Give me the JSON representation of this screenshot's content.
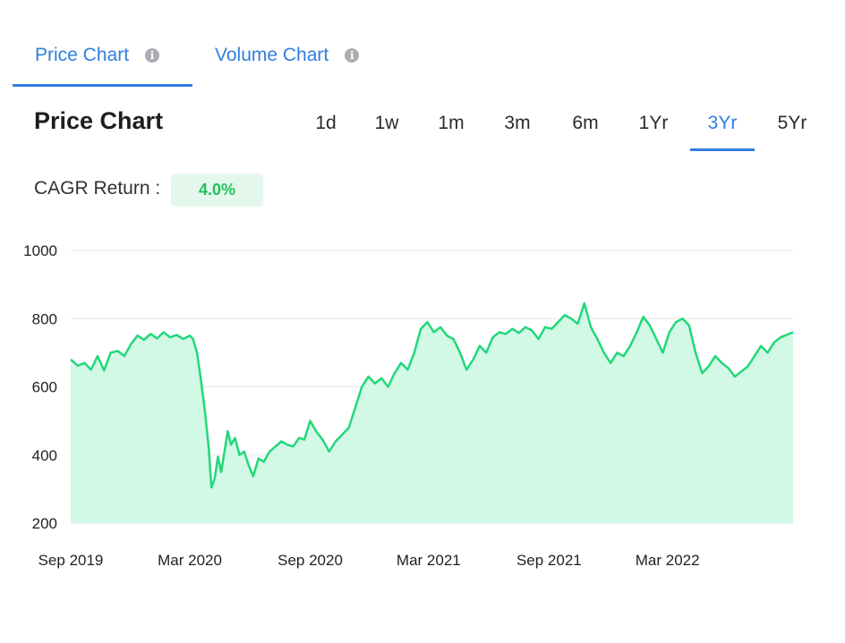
{
  "tabs": [
    {
      "label": "Price Chart",
      "active": true
    },
    {
      "label": "Volume Chart",
      "active": false
    }
  ],
  "info_icon": "info-circle-icon",
  "chart_title": "Price Chart",
  "ranges": [
    "1d",
    "1w",
    "1m",
    "3m",
    "6m",
    "1Yr",
    "3Yr",
    "5Yr"
  ],
  "active_range": "3Yr",
  "cagr": {
    "label": "CAGR Return :",
    "value": "4.0%"
  },
  "colors": {
    "accent": "#2f7ee0",
    "line": "#22d87a",
    "fill": "#d2f8e6",
    "positive": "#20c25a"
  },
  "chart_data": {
    "type": "area",
    "title": "",
    "xlabel": "",
    "ylabel": "",
    "ylim": [
      200,
      1000
    ],
    "yticks": [
      200,
      400,
      600,
      800,
      1000
    ],
    "xlim": [
      "2019-09-01",
      "2022-09-09"
    ],
    "xticks": [
      {
        "date": "2019-09-01",
        "label": "Sep 2019"
      },
      {
        "date": "2020-03-01",
        "label": "Mar 2020"
      },
      {
        "date": "2020-09-01",
        "label": "Sep 2020"
      },
      {
        "date": "2021-03-01",
        "label": "Mar 2021"
      },
      {
        "date": "2021-09-01",
        "label": "Sep 2021"
      },
      {
        "date": "2022-03-01",
        "label": "Mar 2022"
      }
    ],
    "grid": true,
    "series": [
      {
        "points": [
          [
            "2019-09-01",
            680
          ],
          [
            "2019-09-12",
            662
          ],
          [
            "2019-09-22",
            670
          ],
          [
            "2019-10-02",
            650
          ],
          [
            "2019-10-12",
            690
          ],
          [
            "2019-10-22",
            648
          ],
          [
            "2019-11-01",
            700
          ],
          [
            "2019-11-12",
            705
          ],
          [
            "2019-11-22",
            690
          ],
          [
            "2019-12-02",
            725
          ],
          [
            "2019-12-12",
            750
          ],
          [
            "2019-12-22",
            738
          ],
          [
            "2020-01-01",
            755
          ],
          [
            "2020-01-11",
            742
          ],
          [
            "2020-01-21",
            760
          ],
          [
            "2020-01-31",
            745
          ],
          [
            "2020-02-10",
            752
          ],
          [
            "2020-02-20",
            740
          ],
          [
            "2020-03-01",
            750
          ],
          [
            "2020-03-06",
            740
          ],
          [
            "2020-03-12",
            700
          ],
          [
            "2020-03-18",
            620
          ],
          [
            "2020-03-24",
            530
          ],
          [
            "2020-03-30",
            420
          ],
          [
            "2020-04-03",
            305
          ],
          [
            "2020-04-08",
            330
          ],
          [
            "2020-04-13",
            395
          ],
          [
            "2020-04-18",
            350
          ],
          [
            "2020-04-23",
            410
          ],
          [
            "2020-04-28",
            470
          ],
          [
            "2020-05-03",
            430
          ],
          [
            "2020-05-09",
            450
          ],
          [
            "2020-05-16",
            400
          ],
          [
            "2020-05-23",
            410
          ],
          [
            "2020-05-30",
            370
          ],
          [
            "2020-06-06",
            338
          ],
          [
            "2020-06-14",
            390
          ],
          [
            "2020-06-22",
            380
          ],
          [
            "2020-07-01",
            410
          ],
          [
            "2020-07-10",
            425
          ],
          [
            "2020-07-19",
            440
          ],
          [
            "2020-07-28",
            430
          ],
          [
            "2020-08-06",
            425
          ],
          [
            "2020-08-15",
            450
          ],
          [
            "2020-08-23",
            445
          ],
          [
            "2020-09-01",
            500
          ],
          [
            "2020-09-10",
            470
          ],
          [
            "2020-09-20",
            445
          ],
          [
            "2020-09-30",
            410
          ],
          [
            "2020-10-10",
            440
          ],
          [
            "2020-10-20",
            460
          ],
          [
            "2020-10-30",
            480
          ],
          [
            "2020-11-09",
            540
          ],
          [
            "2020-11-19",
            600
          ],
          [
            "2020-11-29",
            630
          ],
          [
            "2020-12-09",
            610
          ],
          [
            "2020-12-19",
            625
          ],
          [
            "2020-12-29",
            600
          ],
          [
            "2021-01-08",
            640
          ],
          [
            "2021-01-18",
            670
          ],
          [
            "2021-01-28",
            650
          ],
          [
            "2021-02-07",
            700
          ],
          [
            "2021-02-17",
            770
          ],
          [
            "2021-02-27",
            790
          ],
          [
            "2021-03-09",
            760
          ],
          [
            "2021-03-19",
            775
          ],
          [
            "2021-03-29",
            750
          ],
          [
            "2021-04-08",
            740
          ],
          [
            "2021-04-18",
            700
          ],
          [
            "2021-04-28",
            650
          ],
          [
            "2021-05-08",
            680
          ],
          [
            "2021-05-18",
            720
          ],
          [
            "2021-05-28",
            700
          ],
          [
            "2021-06-07",
            745
          ],
          [
            "2021-06-17",
            760
          ],
          [
            "2021-06-27",
            755
          ],
          [
            "2021-07-07",
            770
          ],
          [
            "2021-07-17",
            758
          ],
          [
            "2021-07-27",
            775
          ],
          [
            "2021-08-06",
            765
          ],
          [
            "2021-08-16",
            740
          ],
          [
            "2021-08-26",
            775
          ],
          [
            "2021-09-05",
            770
          ],
          [
            "2021-09-15",
            790
          ],
          [
            "2021-09-25",
            810
          ],
          [
            "2021-10-05",
            800
          ],
          [
            "2021-10-15",
            785
          ],
          [
            "2021-10-25",
            845
          ],
          [
            "2021-11-04",
            775
          ],
          [
            "2021-11-14",
            740
          ],
          [
            "2021-11-24",
            700
          ],
          [
            "2021-12-04",
            670
          ],
          [
            "2021-12-14",
            700
          ],
          [
            "2021-12-24",
            690
          ],
          [
            "2022-01-03",
            720
          ],
          [
            "2022-01-13",
            760
          ],
          [
            "2022-01-23",
            805
          ],
          [
            "2022-02-02",
            780
          ],
          [
            "2022-02-12",
            740
          ],
          [
            "2022-02-22",
            700
          ],
          [
            "2022-03-04",
            760
          ],
          [
            "2022-03-14",
            790
          ],
          [
            "2022-03-24",
            800
          ],
          [
            "2022-04-03",
            780
          ],
          [
            "2022-04-13",
            700
          ],
          [
            "2022-04-23",
            640
          ],
          [
            "2022-05-03",
            660
          ],
          [
            "2022-05-13",
            690
          ],
          [
            "2022-05-23",
            670
          ],
          [
            "2022-06-02",
            655
          ],
          [
            "2022-06-12",
            630
          ],
          [
            "2022-06-22",
            645
          ],
          [
            "2022-07-02",
            660
          ],
          [
            "2022-07-12",
            690
          ],
          [
            "2022-07-22",
            720
          ],
          [
            "2022-08-01",
            700
          ],
          [
            "2022-08-11",
            730
          ],
          [
            "2022-08-21",
            745
          ],
          [
            "2022-09-09",
            760
          ]
        ]
      }
    ]
  }
}
